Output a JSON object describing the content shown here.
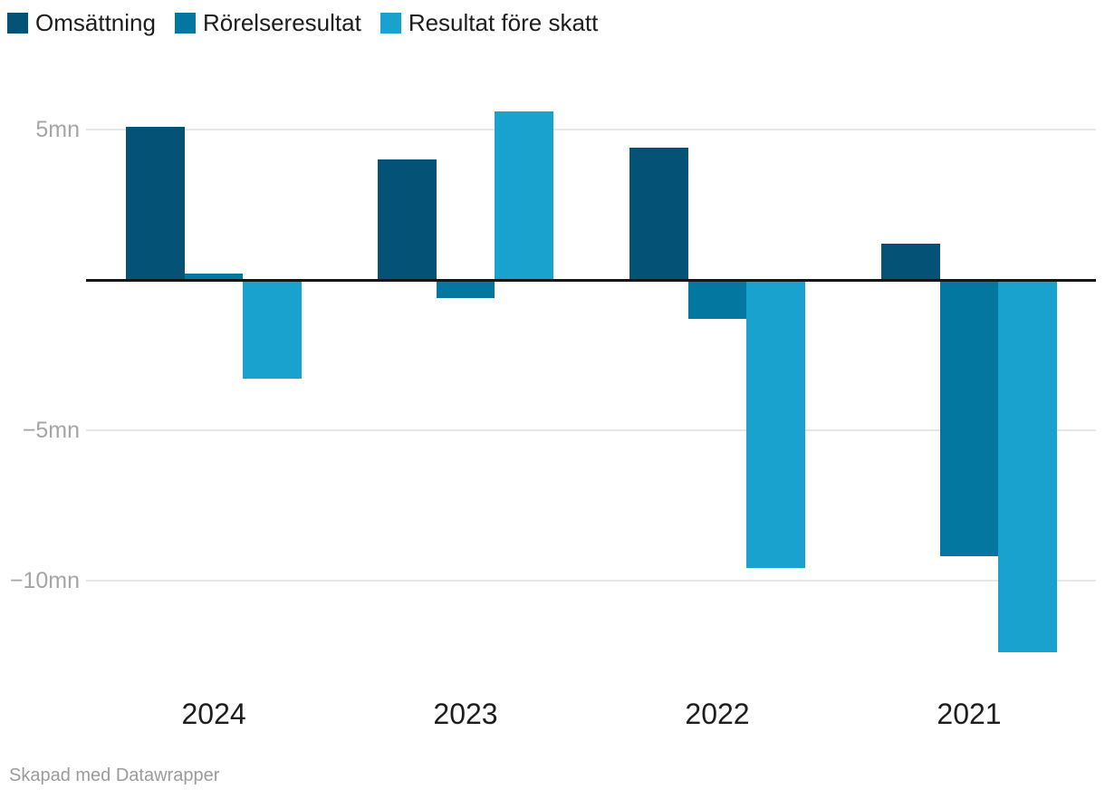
{
  "chart_data": {
    "type": "bar",
    "title": "",
    "categories": [
      "2024",
      "2023",
      "2022",
      "2021"
    ],
    "series": [
      {
        "name": "Omsättning",
        "color": "#045377",
        "values": [
          5.1,
          4.0,
          4.4,
          1.2
        ]
      },
      {
        "name": "Rörelseresultat",
        "color": "#0377a0",
        "values": [
          0.2,
          -0.6,
          -1.3,
          -9.2
        ]
      },
      {
        "name": "Resultat före skatt",
        "color": "#1aa2cf",
        "values": [
          -3.3,
          5.6,
          -9.6,
          -12.4
        ]
      }
    ],
    "unit": "mn",
    "y_ticks": [
      {
        "value": 5,
        "label": "5mn"
      },
      {
        "value": -5,
        "label": "−5mn"
      },
      {
        "value": -10,
        "label": "−10mn"
      }
    ],
    "ylim": [
      -13.3,
      6.4
    ],
    "grid": "horizontal-only",
    "legend_position": "top-left",
    "zero_line": true
  },
  "footer": {
    "credit": "Skapad med Datawrapper"
  },
  "colors": {
    "gridline": "#e6e6e6",
    "zero_line": "#161616",
    "tick_label": "#a5a5a5",
    "category_label": "#1d1d1d",
    "legend_label": "#1d1d1d",
    "credit_text": "#9b9b9b",
    "background": "#ffffff"
  }
}
